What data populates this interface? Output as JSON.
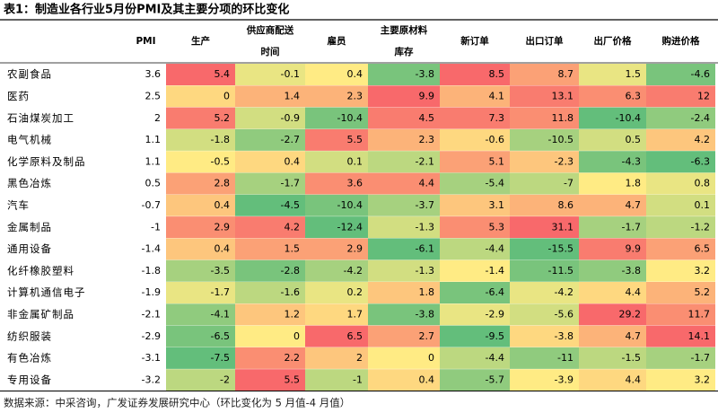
{
  "title": "表1：制造业各行业5月份PMI及其主要分项的环比变化",
  "table": {
    "headers": [
      [
        "PMI"
      ],
      [
        "生产"
      ],
      [
        "供应商配送",
        "时间"
      ],
      [
        "雇员"
      ],
      [
        "主要原材料",
        "库存"
      ],
      [
        "新订单"
      ],
      [
        "出口订单"
      ],
      [
        "出厂价格"
      ],
      [
        "购进价格"
      ]
    ],
    "rows": [
      {
        "label": "农副食品",
        "values": [
          3.6,
          5.4,
          -0.1,
          0.4,
          -3.8,
          8.5,
          8.7,
          1.5,
          -4.6
        ]
      },
      {
        "label": "医药",
        "values": [
          2.5,
          0,
          1.4,
          2.3,
          9.9,
          4.1,
          13.1,
          6.3,
          12
        ]
      },
      {
        "label": "石油煤炭加工",
        "values": [
          2,
          5.2,
          -0.9,
          -10.4,
          4.5,
          7.3,
          11.8,
          -10.4,
          -2.4
        ]
      },
      {
        "label": "电气机械",
        "values": [
          1.1,
          -1.8,
          -2.7,
          5.5,
          2.3,
          -0.6,
          -10.5,
          0.5,
          4.2
        ]
      },
      {
        "label": "化学原料及制品",
        "values": [
          1.1,
          -0.5,
          0.4,
          0.1,
          -2.1,
          5.1,
          -2.3,
          -4.3,
          -6.3
        ]
      },
      {
        "label": "黑色冶炼",
        "values": [
          0.5,
          2.8,
          -1.7,
          3.6,
          4.4,
          -5.4,
          -7,
          1.8,
          0.8
        ]
      },
      {
        "label": "汽车",
        "values": [
          -0.7,
          0.4,
          -4.5,
          -10.4,
          -3.7,
          3.1,
          8.6,
          4.7,
          0.1
        ]
      },
      {
        "label": "金属制品",
        "values": [
          -1,
          2.9,
          4.2,
          -12.4,
          -1.3,
          5.3,
          31.1,
          -1.7,
          -1.2
        ]
      },
      {
        "label": "通用设备",
        "values": [
          -1.4,
          0.4,
          1.5,
          2.9,
          -6.1,
          -4.4,
          -15.5,
          9.9,
          6.5
        ]
      },
      {
        "label": "化纤橡胶塑料",
        "values": [
          -1.8,
          -3.5,
          -2.8,
          -4.2,
          -1.3,
          -1.4,
          -11.5,
          -3.8,
          3.2
        ]
      },
      {
        "label": "计算机通信电子",
        "values": [
          -1.9,
          -1.7,
          -1.6,
          0.2,
          1.8,
          -6.4,
          -4.2,
          4.4,
          5.2
        ]
      },
      {
        "label": "非金属矿制品",
        "values": [
          -2.1,
          -4.1,
          1.2,
          1.7,
          -3.8,
          -2.9,
          -5.6,
          29.2,
          11.7
        ]
      },
      {
        "label": "纺织服装",
        "values": [
          -2.9,
          -6.5,
          0,
          6.5,
          2.7,
          -9.5,
          -3.8,
          4.7,
          14.1
        ]
      },
      {
        "label": "有色冶炼",
        "values": [
          -3.1,
          -7.5,
          2.2,
          2,
          0,
          -4.4,
          -11,
          -1.5,
          -1.7
        ]
      },
      {
        "label": "专用设备",
        "values": [
          -3.2,
          -2,
          5.5,
          -1,
          0.4,
          -5.7,
          -3.9,
          4.4,
          3.2
        ]
      }
    ]
  },
  "footer": "数据来源：中采咨询，广发证券发展研究中心（环比变化为 5 月值-4 月值）"
}
